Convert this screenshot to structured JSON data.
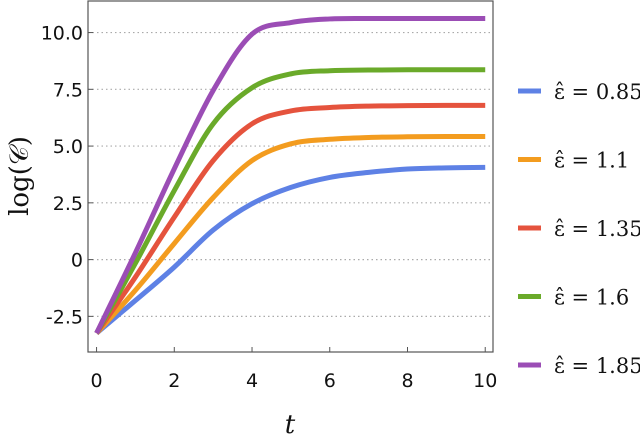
{
  "chart_data": {
    "type": "line",
    "xlabel": "t",
    "ylabel": "log(𝒞)",
    "xlim": [
      -0.22,
      10.2
    ],
    "ylim": [
      -4.07,
      11.39
    ],
    "xticks": [
      0,
      2,
      4,
      6,
      8,
      10
    ],
    "xtick_labels": [
      "0",
      "2",
      "4",
      "6",
      "8",
      "10"
    ],
    "yticks": [
      -2.5,
      0,
      2.5,
      5,
      7.5,
      10
    ],
    "ytick_labels": [
      "-2.5",
      "0",
      "2.5",
      "5.0",
      "7.5",
      "10.0"
    ],
    "grid": "horizontal dotted",
    "legend_position": "right",
    "x": [
      0,
      1,
      2,
      3,
      4,
      5,
      6,
      7,
      8,
      9,
      10
    ],
    "series": [
      {
        "name": "ε̂ = 0.85",
        "color": "#5E81E5",
        "values": [
          -3.24,
          -1.8,
          -0.33,
          1.3,
          2.46,
          3.18,
          3.62,
          3.84,
          3.99,
          4.04,
          4.06
        ]
      },
      {
        "name": "ε̂ = 1.1",
        "color": "#F39C1F",
        "values": [
          -3.24,
          -1.35,
          0.71,
          2.73,
          4.36,
          5.1,
          5.3,
          5.38,
          5.41,
          5.42,
          5.42
        ]
      },
      {
        "name": "ε̂ = 1.35",
        "color": "#E5533D",
        "values": [
          -3.24,
          -0.77,
          1.87,
          4.36,
          5.98,
          6.55,
          6.7,
          6.76,
          6.78,
          6.79,
          6.79
        ]
      },
      {
        "name": "ε̂ = 1.6",
        "color": "#6AAA2A",
        "values": [
          -3.24,
          -0.16,
          3.04,
          5.98,
          7.57,
          8.18,
          8.32,
          8.35,
          8.36,
          8.36,
          8.36
        ]
      },
      {
        "name": "ε̂ = 1.85",
        "color": "#9B4DB5",
        "values": [
          -3.24,
          0.3,
          4.0,
          7.45,
          9.93,
          10.44,
          10.6,
          10.62,
          10.62,
          10.62,
          10.62
        ]
      }
    ]
  }
}
